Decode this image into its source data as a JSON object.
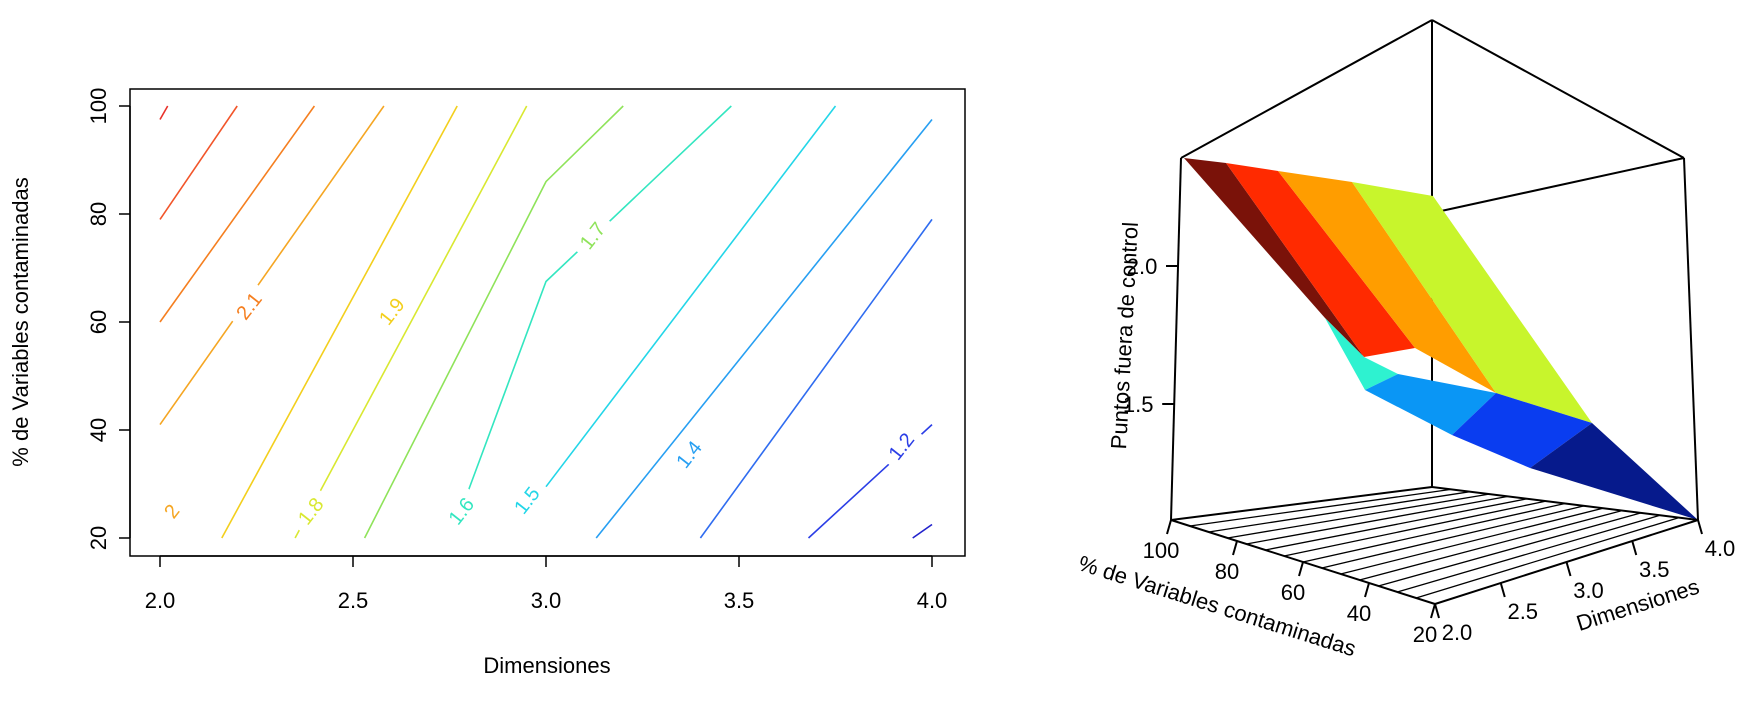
{
  "chart_data": [
    {
      "type": "contour",
      "xlabel": "Dimensiones",
      "ylabel": "% de Variables contaminadas",
      "xlim": [
        2.0,
        4.0
      ],
      "ylim": [
        20,
        100
      ],
      "x_ticks": [
        "2.0",
        "2.5",
        "3.0",
        "3.5",
        "4.0"
      ],
      "y_ticks": [
        "20",
        "40",
        "60",
        "80",
        "100"
      ],
      "levels": [
        {
          "level": 2.3,
          "label": "",
          "color": "#e8322a",
          "points": [
            [
              2.0,
              97.5
            ],
            [
              2.02,
              100
            ]
          ]
        },
        {
          "level": 2.2,
          "label": "",
          "color": "#f2552a",
          "points": [
            [
              2.0,
              79
            ],
            [
              2.2,
              100
            ]
          ]
        },
        {
          "level": 2.1,
          "label": "2.1",
          "color": "#f57f20",
          "label_at": [
            2.23,
            63
          ],
          "points": [
            [
              2.0,
              60
            ],
            [
              2.4,
              100
            ]
          ]
        },
        {
          "level": 2.0,
          "label": "2",
          "color": "#f5a623",
          "label_at": [
            2.03,
            25
          ],
          "points": [
            [
              2.0,
              41
            ],
            [
              2.58,
              100
            ]
          ]
        },
        {
          "level": 1.9,
          "label": "1.9",
          "color": "#f3cf1d",
          "label_at": [
            2.6,
            62
          ],
          "points": [
            [
              2.16,
              20
            ],
            [
              2.77,
              100
            ]
          ]
        },
        {
          "level": 1.8,
          "label": "1.8",
          "color": "#d9e831",
          "label_at": [
            2.39,
            25
          ],
          "points": [
            [
              2.35,
              20
            ],
            [
              2.95,
              100
            ]
          ]
        },
        {
          "level": 1.7,
          "label": "1.7",
          "color": "#8fe35a",
          "label_at": [
            3.12,
            76
          ],
          "points": [
            [
              2.53,
              20
            ],
            [
              3.0,
              86
            ],
            [
              3.2,
              100
            ]
          ]
        },
        {
          "level": 1.6,
          "label": "1.6",
          "color": "#33e6c0",
          "label_at": [
            2.78,
            25
          ],
          "points": [
            [
              2.8,
              29
            ],
            [
              3.0,
              67.5
            ],
            [
              3.48,
              100
            ]
          ]
        },
        {
          "level": 1.5,
          "label": "1.5",
          "color": "#23d6e8",
          "label_at": [
            2.95,
            27
          ],
          "points": [
            [
              3.0,
              29.5
            ],
            [
              3.75,
              100
            ]
          ]
        },
        {
          "level": 1.4,
          "label": "1.4",
          "color": "#279ff2",
          "label_at": [
            3.37,
            35.5
          ],
          "points": [
            [
              3.13,
              20
            ],
            [
              4.0,
              97.5
            ]
          ]
        },
        {
          "level": 1.3,
          "label": "",
          "color": "#2f6cf0",
          "points": [
            [
              3.4,
              20
            ],
            [
              4.0,
              79
            ]
          ]
        },
        {
          "level": 1.2,
          "label": "1.2",
          "color": "#2b3ee6",
          "label_at": [
            3.92,
            37
          ],
          "points": [
            [
              3.68,
              20
            ],
            [
              4.0,
              41
            ]
          ]
        },
        {
          "level": 1.1,
          "label": "",
          "color": "#2222cc",
          "points": [
            [
              3.95,
              20
            ],
            [
              4.0,
              22.5
            ]
          ]
        }
      ]
    },
    {
      "type": "surface3d",
      "xlabel": "Dimensiones",
      "ylabel": "% de Variables contaminadas",
      "zlabel": "Puntos fuera de control",
      "x_ticks": [
        "2.0",
        "2.5",
        "3.0",
        "3.5",
        "4.0"
      ],
      "y_ticks": [
        "20",
        "40",
        "60",
        "80",
        "100"
      ],
      "z_ticks": [
        "1.5",
        "2.0"
      ],
      "color_bands": [
        "#7a1209",
        "#ff2a00",
        "#ff9d00",
        "#c8f52c",
        "#2ef2d0",
        "#0a96f5",
        "#0a3df0",
        "#061a8c"
      ]
    }
  ]
}
